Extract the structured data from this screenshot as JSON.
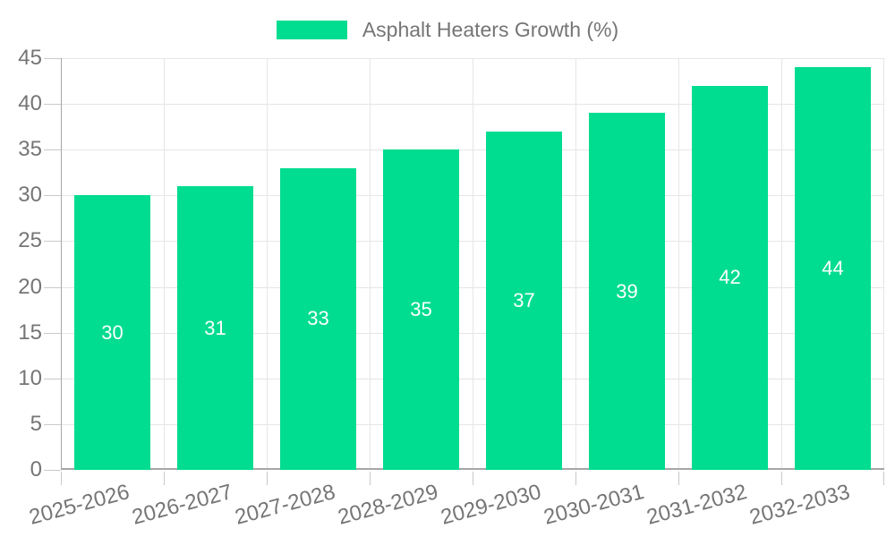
{
  "legend": {
    "label": "Asphalt Heaters Growth (%)"
  },
  "chart_data": {
    "type": "bar",
    "title": "Asphalt Heaters Growth (%)",
    "categories": [
      "2025-2026",
      "2026-2027",
      "2027-2028",
      "2028-2029",
      "2029-2030",
      "2030-2031",
      "2031-2032",
      "2032-2033"
    ],
    "values": [
      30,
      31,
      33,
      35,
      37,
      39,
      42,
      44
    ],
    "xlabel": "",
    "ylabel": "",
    "ylim": [
      0,
      45
    ],
    "ytick_step": 5,
    "grid": true,
    "legend_position": "top",
    "bar_color": "#00dc90",
    "value_label_color": "#ffffff",
    "axis_text_color": "#757575",
    "gridline_color": "#e6e6e6",
    "axis_line_color": "#a6a6a6",
    "tick_color": "#c9c9c9",
    "background_color": "#ffffff"
  }
}
